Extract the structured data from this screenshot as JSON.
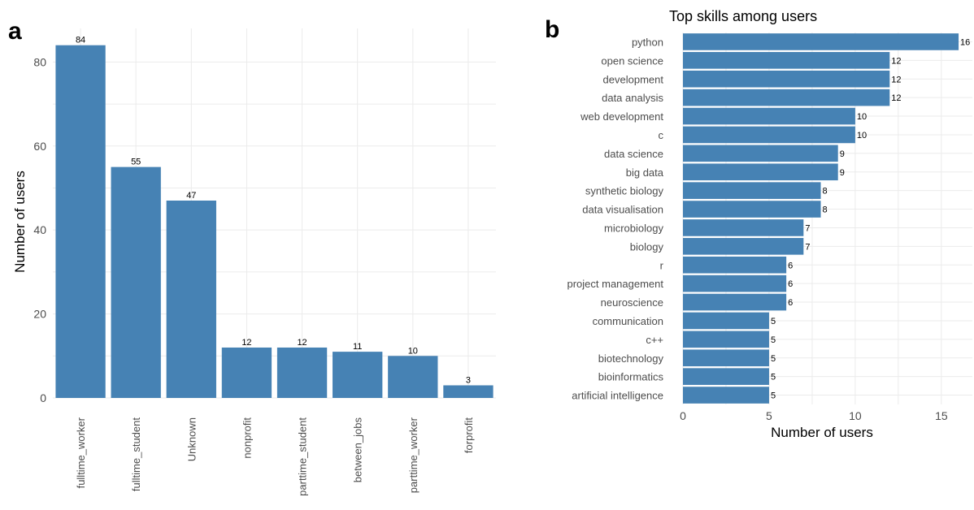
{
  "panels": {
    "a": "a",
    "b": "b"
  },
  "colors": {
    "bar": "#4682b4",
    "grid": "#ebebeb",
    "tick_text": "#4d4d4d"
  },
  "chart_data": [
    {
      "type": "bar",
      "title": "",
      "xlabel": "",
      "ylabel": "Number of users",
      "categories": [
        "fulltime_worker",
        "fulltime_student",
        "Unknown",
        "nonprofit",
        "parttime_student",
        "between_jobs",
        "parttime_worker",
        "forprofit"
      ],
      "values": [
        84,
        55,
        47,
        12,
        12,
        11,
        10,
        3
      ],
      "ylim": [
        0,
        88
      ],
      "yticks": [
        0,
        20,
        40,
        60,
        80
      ],
      "grid": true,
      "data_labels": true
    },
    {
      "type": "bar",
      "orientation": "horizontal",
      "title": "Top skills among users",
      "xlabel": "Number of users",
      "ylabel": "",
      "categories": [
        "python",
        "open science",
        "development",
        "data analysis",
        "web development",
        "c",
        "data science",
        "big data",
        "synthetic biology",
        "data visualisation",
        "microbiology",
        "biology",
        "r",
        "project management",
        "neuroscience",
        "communication",
        "c++",
        "biotechnology",
        "bioinformatics",
        "artificial intelligence"
      ],
      "values": [
        16,
        12,
        12,
        12,
        10,
        10,
        9,
        9,
        8,
        8,
        7,
        7,
        6,
        6,
        6,
        5,
        5,
        5,
        5,
        5
      ],
      "xlim": [
        0,
        16.8
      ],
      "xticks": [
        0,
        5,
        10,
        15
      ],
      "grid": true,
      "data_labels": true
    }
  ]
}
